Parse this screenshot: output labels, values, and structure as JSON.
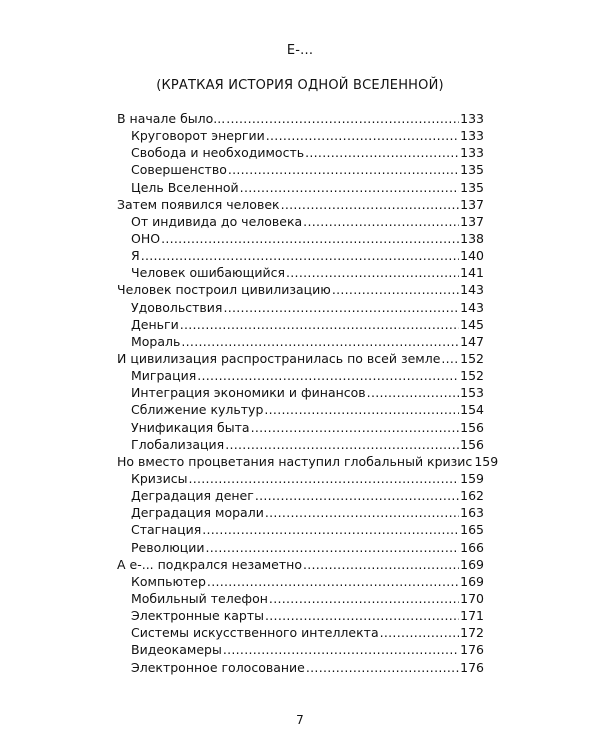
{
  "title": "Е-...",
  "subtitle": "(КРАТКАЯ ИСТОРИЯ ОДНОЙ ВСЕЛЕННОЙ)",
  "toc": [
    {
      "label": "В начале было...",
      "page": "133",
      "level": 0
    },
    {
      "label": "Круговорот энергии",
      "page": "133",
      "level": 1
    },
    {
      "label": "Свобода и необходимость",
      "page": "133",
      "level": 1
    },
    {
      "label": "Совершенство",
      "page": "135",
      "level": 1
    },
    {
      "label": "Цель Вселенной",
      "page": "135",
      "level": 1
    },
    {
      "label": "Затем появился человек",
      "page": "137",
      "level": 0
    },
    {
      "label": "От индивида до человека",
      "page": "137",
      "level": 1
    },
    {
      "label": "ОНО",
      "page": "138",
      "level": 1
    },
    {
      "label": "Я",
      "page": "140",
      "level": 1
    },
    {
      "label": "Человек ошибающийся",
      "page": "141",
      "level": 1
    },
    {
      "label": "Человек построил цивилизацию",
      "page": "143",
      "level": 0
    },
    {
      "label": "Удовольствия",
      "page": "143",
      "level": 1
    },
    {
      "label": "Деньги",
      "page": "145",
      "level": 1
    },
    {
      "label": "Мораль",
      "page": "147",
      "level": 1
    },
    {
      "label": "И цивилизация распространилась по всей земле",
      "page": "152",
      "level": 0
    },
    {
      "label": "Миграция",
      "page": "152",
      "level": 1
    },
    {
      "label": "Интеграция экономики и финансов",
      "page": "153",
      "level": 1
    },
    {
      "label": "Сближение культур",
      "page": "154",
      "level": 1
    },
    {
      "label": "Унификация быта",
      "page": "156",
      "level": 1
    },
    {
      "label": "Глобализация",
      "page": "156",
      "level": 1
    },
    {
      "label": "Но вместо процветания наступил глобальный кризис",
      "page": "159",
      "level": 0
    },
    {
      "label": "Кризисы",
      "page": "159",
      "level": 1
    },
    {
      "label": "Деградация денег",
      "page": "162",
      "level": 1
    },
    {
      "label": "Деградация морали",
      "page": "163",
      "level": 1
    },
    {
      "label": "Стагнация",
      "page": "165",
      "level": 1
    },
    {
      "label": "Революции",
      "page": "166",
      "level": 1
    },
    {
      "label": "А е-... подкрался незаметно",
      "page": "169",
      "level": 0
    },
    {
      "label": "Компьютер",
      "page": "169",
      "level": 1
    },
    {
      "label": "Мобильный телефон",
      "page": "170",
      "level": 1
    },
    {
      "label": "Электронные карты",
      "page": "171",
      "level": 1
    },
    {
      "label": "Системы искусственного интеллекта",
      "page": "172",
      "level": 1
    },
    {
      "label": "Видеокамеры",
      "page": "176",
      "level": 1
    },
    {
      "label": "Электронное голосование",
      "page": "176",
      "level": 1
    }
  ],
  "page_number": "7"
}
